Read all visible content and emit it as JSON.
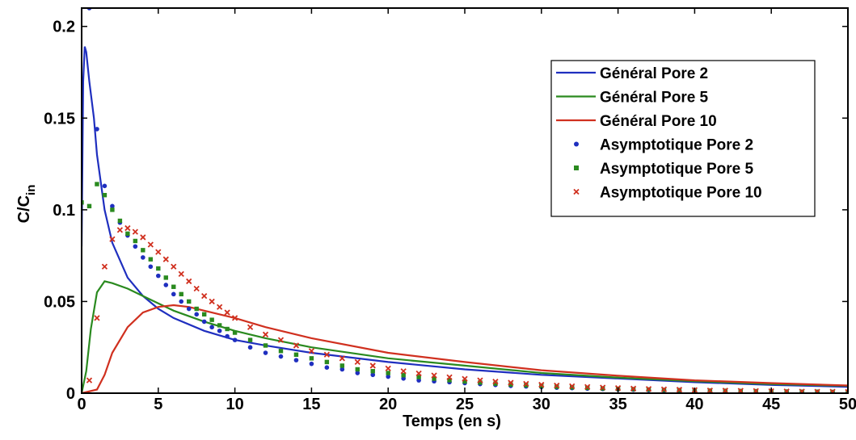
{
  "chart_data": {
    "type": "line",
    "title": "",
    "xlabel": "Temps (en s)",
    "ylabel": {
      "main": "C/C",
      "sub": "in"
    },
    "xlim": [
      0,
      50
    ],
    "ylim": [
      0,
      0.21
    ],
    "xticks": [
      0,
      5,
      10,
      15,
      20,
      25,
      30,
      35,
      40,
      45,
      50
    ],
    "yticks": [
      0,
      0.05,
      0.1,
      0.15,
      0.2
    ],
    "x_tick_labels": [
      "0",
      "5",
      "10",
      "15",
      "20",
      "25",
      "30",
      "35",
      "40",
      "45",
      "50"
    ],
    "y_tick_labels": [
      "0",
      "0.05",
      "0.1",
      "0.15",
      "0.2"
    ],
    "grid": false,
    "legend_position": "top-right",
    "series": [
      {
        "name": "Général Pore 2",
        "kind": "line",
        "color": "#1f2fbf",
        "points": [
          [
            0,
            0.08
          ],
          [
            0.1,
            0.17
          ],
          [
            0.2,
            0.189
          ],
          [
            0.3,
            0.186
          ],
          [
            0.5,
            0.17
          ],
          [
            0.8,
            0.15
          ],
          [
            1,
            0.13
          ],
          [
            1.5,
            0.1
          ],
          [
            2,
            0.082
          ],
          [
            3,
            0.063
          ],
          [
            4,
            0.053
          ],
          [
            5,
            0.046
          ],
          [
            6,
            0.041
          ],
          [
            8,
            0.034
          ],
          [
            10,
            0.029
          ],
          [
            12,
            0.026
          ],
          [
            15,
            0.022
          ],
          [
            20,
            0.017
          ],
          [
            25,
            0.013
          ],
          [
            30,
            0.01
          ],
          [
            35,
            0.008
          ],
          [
            40,
            0.006
          ],
          [
            45,
            0.0045
          ],
          [
            50,
            0.0035
          ]
        ]
      },
      {
        "name": "Général Pore 5",
        "kind": "line",
        "color": "#2a8a1f",
        "points": [
          [
            0,
            0
          ],
          [
            0.3,
            0.012
          ],
          [
            0.6,
            0.035
          ],
          [
            1,
            0.055
          ],
          [
            1.5,
            0.061
          ],
          [
            2,
            0.06
          ],
          [
            3,
            0.057
          ],
          [
            4,
            0.053
          ],
          [
            5,
            0.049
          ],
          [
            6,
            0.045
          ],
          [
            8,
            0.039
          ],
          [
            10,
            0.034
          ],
          [
            12,
            0.03
          ],
          [
            15,
            0.025
          ],
          [
            20,
            0.019
          ],
          [
            25,
            0.015
          ],
          [
            30,
            0.011
          ],
          [
            35,
            0.0085
          ],
          [
            40,
            0.0065
          ],
          [
            45,
            0.005
          ],
          [
            50,
            0.004
          ]
        ]
      },
      {
        "name": "Général Pore 10",
        "kind": "line",
        "color": "#d0301f",
        "points": [
          [
            0,
            0
          ],
          [
            1,
            0.002
          ],
          [
            1.5,
            0.01
          ],
          [
            2,
            0.022
          ],
          [
            3,
            0.036
          ],
          [
            4,
            0.044
          ],
          [
            5,
            0.047
          ],
          [
            6,
            0.048
          ],
          [
            7,
            0.047
          ],
          [
            8,
            0.045
          ],
          [
            10,
            0.041
          ],
          [
            12,
            0.036
          ],
          [
            15,
            0.03
          ],
          [
            20,
            0.022
          ],
          [
            25,
            0.017
          ],
          [
            30,
            0.0125
          ],
          [
            35,
            0.0095
          ],
          [
            40,
            0.007
          ],
          [
            45,
            0.0055
          ],
          [
            50,
            0.0042
          ]
        ]
      },
      {
        "name": "Asymptotique Pore 2",
        "kind": "scatter",
        "marker": "dot",
        "color": "#1f2fbf",
        "points": [
          [
            0.5,
            0.21
          ],
          [
            1,
            0.144
          ],
          [
            1.5,
            0.113
          ],
          [
            2,
            0.102
          ],
          [
            2.5,
            0.093
          ],
          [
            3,
            0.086
          ],
          [
            3.5,
            0.08
          ],
          [
            4,
            0.074
          ],
          [
            4.5,
            0.069
          ],
          [
            5,
            0.064
          ],
          [
            5.5,
            0.059
          ],
          [
            6,
            0.054
          ],
          [
            6.5,
            0.05
          ],
          [
            7,
            0.046
          ],
          [
            7.5,
            0.043
          ],
          [
            8,
            0.039
          ],
          [
            8.5,
            0.036
          ],
          [
            9,
            0.034
          ],
          [
            9.5,
            0.031
          ],
          [
            10,
            0.029
          ],
          [
            11,
            0.025
          ],
          [
            12,
            0.022
          ],
          [
            13,
            0.02
          ],
          [
            14,
            0.018
          ],
          [
            15,
            0.016
          ],
          [
            16,
            0.014
          ],
          [
            17,
            0.013
          ],
          [
            18,
            0.011
          ],
          [
            19,
            0.01
          ],
          [
            20,
            0.009
          ],
          [
            21,
            0.008
          ],
          [
            22,
            0.007
          ],
          [
            23,
            0.0065
          ],
          [
            24,
            0.006
          ],
          [
            25,
            0.0055
          ],
          [
            26,
            0.005
          ],
          [
            27,
            0.0045
          ],
          [
            28,
            0.004
          ],
          [
            29,
            0.0037
          ],
          [
            30,
            0.0034
          ],
          [
            31,
            0.003
          ],
          [
            32,
            0.0028
          ],
          [
            33,
            0.0025
          ],
          [
            34,
            0.0023
          ],
          [
            35,
            0.0021
          ],
          [
            36,
            0.0019
          ],
          [
            37,
            0.0017
          ],
          [
            38,
            0.0016
          ],
          [
            39,
            0.0014
          ],
          [
            40,
            0.0013
          ],
          [
            41,
            0.0012
          ],
          [
            42,
            0.0011
          ],
          [
            43,
            0.001
          ],
          [
            44,
            0.0009
          ],
          [
            45,
            0.0008
          ],
          [
            46,
            0.0008
          ],
          [
            47,
            0.0007
          ],
          [
            48,
            0.0006
          ],
          [
            49,
            0.0006
          ],
          [
            50,
            0.0005
          ]
        ]
      },
      {
        "name": "Asymptotique Pore 5",
        "kind": "scatter",
        "marker": "square",
        "color": "#2a8a1f",
        "points": [
          [
            0,
            0.104
          ],
          [
            0.5,
            0.102
          ],
          [
            1,
            0.114
          ],
          [
            1.5,
            0.108
          ],
          [
            2,
            0.1
          ],
          [
            2.5,
            0.094
          ],
          [
            3,
            0.087
          ],
          [
            3.5,
            0.083
          ],
          [
            4,
            0.078
          ],
          [
            4.5,
            0.073
          ],
          [
            5,
            0.068
          ],
          [
            5.5,
            0.063
          ],
          [
            6,
            0.058
          ],
          [
            6.5,
            0.054
          ],
          [
            7,
            0.05
          ],
          [
            7.5,
            0.046
          ],
          [
            8,
            0.043
          ],
          [
            8.5,
            0.04
          ],
          [
            9,
            0.037
          ],
          [
            9.5,
            0.035
          ],
          [
            10,
            0.033
          ],
          [
            11,
            0.029
          ],
          [
            12,
            0.026
          ],
          [
            13,
            0.023
          ],
          [
            14,
            0.021
          ],
          [
            15,
            0.019
          ],
          [
            16,
            0.017
          ],
          [
            17,
            0.015
          ],
          [
            18,
            0.013
          ],
          [
            19,
            0.012
          ],
          [
            20,
            0.011
          ],
          [
            21,
            0.0098
          ],
          [
            22,
            0.0088
          ],
          [
            23,
            0.0079
          ],
          [
            24,
            0.0071
          ],
          [
            25,
            0.0064
          ],
          [
            26,
            0.0058
          ],
          [
            27,
            0.0052
          ],
          [
            28,
            0.0047
          ],
          [
            29,
            0.0043
          ],
          [
            30,
            0.0039
          ],
          [
            31,
            0.0035
          ],
          [
            32,
            0.0032
          ],
          [
            33,
            0.0029
          ],
          [
            34,
            0.0026
          ],
          [
            35,
            0.0024
          ],
          [
            36,
            0.0022
          ],
          [
            37,
            0.002
          ],
          [
            38,
            0.0018
          ],
          [
            39,
            0.0017
          ],
          [
            40,
            0.0015
          ],
          [
            41,
            0.0014
          ],
          [
            42,
            0.0013
          ],
          [
            43,
            0.0012
          ],
          [
            44,
            0.0011
          ],
          [
            45,
            0.001
          ],
          [
            46,
            0.0009
          ],
          [
            47,
            0.0008
          ],
          [
            48,
            0.0008
          ],
          [
            49,
            0.0007
          ],
          [
            50,
            0.0007
          ]
        ]
      },
      {
        "name": "Asymptotique Pore 10",
        "kind": "scatter",
        "marker": "x",
        "color": "#d0301f",
        "points": [
          [
            0.5,
            0.007
          ],
          [
            1,
            0.041
          ],
          [
            1.5,
            0.069
          ],
          [
            2,
            0.084
          ],
          [
            2.5,
            0.089
          ],
          [
            3,
            0.09
          ],
          [
            3.5,
            0.088
          ],
          [
            4,
            0.085
          ],
          [
            4.5,
            0.081
          ],
          [
            5,
            0.077
          ],
          [
            5.5,
            0.073
          ],
          [
            6,
            0.069
          ],
          [
            6.5,
            0.065
          ],
          [
            7,
            0.061
          ],
          [
            7.5,
            0.057
          ],
          [
            8,
            0.053
          ],
          [
            8.5,
            0.05
          ],
          [
            9,
            0.047
          ],
          [
            9.5,
            0.044
          ],
          [
            10,
            0.041
          ],
          [
            11,
            0.036
          ],
          [
            12,
            0.032
          ],
          [
            13,
            0.029
          ],
          [
            14,
            0.026
          ],
          [
            15,
            0.023
          ],
          [
            16,
            0.021
          ],
          [
            17,
            0.019
          ],
          [
            18,
            0.017
          ],
          [
            19,
            0.015
          ],
          [
            20,
            0.0135
          ],
          [
            21,
            0.012
          ],
          [
            22,
            0.0108
          ],
          [
            23,
            0.0097
          ],
          [
            24,
            0.0087
          ],
          [
            25,
            0.0078
          ],
          [
            26,
            0.007
          ],
          [
            27,
            0.0063
          ],
          [
            28,
            0.0057
          ],
          [
            29,
            0.0051
          ],
          [
            30,
            0.0046
          ],
          [
            31,
            0.0042
          ],
          [
            32,
            0.0038
          ],
          [
            33,
            0.0034
          ],
          [
            34,
            0.0031
          ],
          [
            35,
            0.0028
          ],
          [
            36,
            0.0025
          ],
          [
            37,
            0.0023
          ],
          [
            38,
            0.0021
          ],
          [
            39,
            0.0019
          ],
          [
            40,
            0.0017
          ],
          [
            41,
            0.0015
          ],
          [
            42,
            0.0014
          ],
          [
            43,
            0.0013
          ],
          [
            44,
            0.0012
          ],
          [
            45,
            0.0011
          ],
          [
            46,
            0.001
          ],
          [
            47,
            0.0009
          ],
          [
            48,
            0.0008
          ],
          [
            49,
            0.0008
          ],
          [
            50,
            0.0007
          ]
        ]
      }
    ]
  }
}
